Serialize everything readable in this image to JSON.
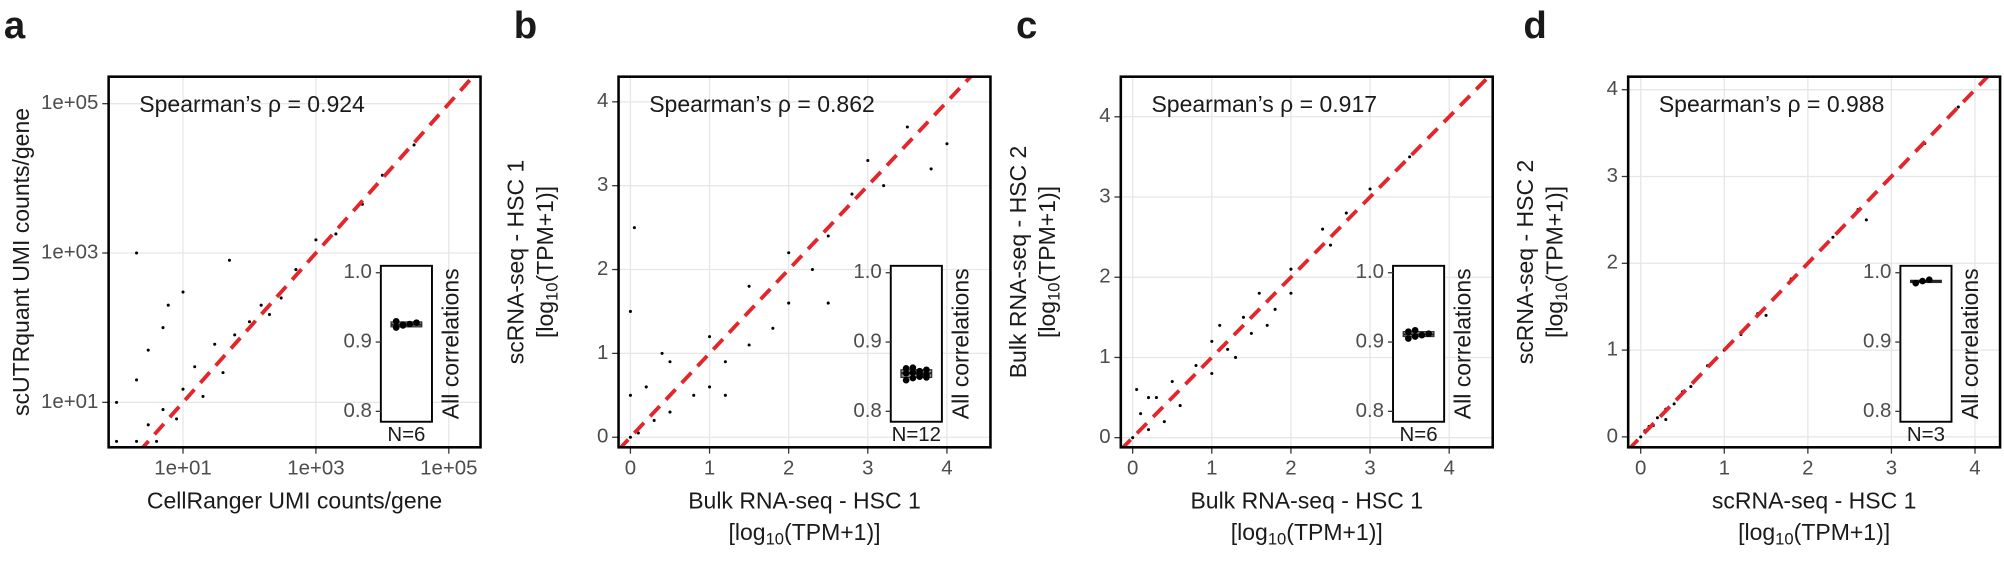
{
  "chart_data": [
    {
      "type": "scatter",
      "letter": "a",
      "annotation": "Spearman’s ρ = 0.924",
      "xlabel": [
        [
          "CellRanger UMI counts/gene"
        ]
      ],
      "ylabel": [
        [
          "scUTRquant UMI counts/gene"
        ]
      ],
      "log": true,
      "color": "#000000",
      "diagonal_color": "#e3262b",
      "grid": true,
      "xlim": [
        0.76,
        300000
      ],
      "ylim": [
        2.5,
        230000
      ],
      "xticks": [
        {
          "value": 10,
          "label": "1e+01"
        },
        {
          "value": 1000,
          "label": "1e+03"
        },
        {
          "value": 100000,
          "label": "1e+05"
        }
      ],
      "yticks": [
        {
          "value": 10,
          "label": "1e+01"
        },
        {
          "value": 1000,
          "label": "1e+03"
        },
        {
          "value": 100000,
          "label": "1e+05"
        }
      ],
      "x": [
        1,
        1,
        2,
        2,
        3,
        3,
        5,
        5,
        8,
        10,
        10,
        15,
        20,
        30,
        40,
        60,
        100,
        150,
        300,
        500,
        1000,
        2000,
        5000,
        10000,
        30000,
        2,
        4,
        6,
        50,
        200
      ],
      "y": [
        3,
        10,
        3,
        20,
        5,
        50,
        8,
        100,
        6,
        15,
        300,
        30,
        12,
        60,
        25,
        80,
        120,
        200,
        250,
        600,
        1500,
        1800,
        4500,
        11000,
        28000,
        1000,
        3,
        200,
        800,
        150
      ],
      "inset": {
        "ylabel": "All correlations",
        "n_label": "N=6",
        "ylim": [
          0.785,
          1.01
        ],
        "yticks": [
          0.8,
          0.9,
          {
            "value": 1,
            "label": "1.0"
          }
        ],
        "box": [
          0.922,
          0.925,
          0.929
        ],
        "values": [
          0.921,
          0.924,
          0.926,
          0.928,
          0.93,
          0.925
        ]
      }
    },
    {
      "type": "scatter",
      "letter": "b",
      "annotation": "Spearman’s ρ = 0.862",
      "xlabel": [
        [
          "Bulk RNA-seq - HSC 1"
        ],
        [
          "[log",
          "10",
          "(TPM+1)]"
        ]
      ],
      "ylabel": [
        [
          "scRNA-seq - HSC 1"
        ],
        [
          "[log",
          "10",
          "(TPM+1)]"
        ]
      ],
      "log": false,
      "color": "#000000",
      "diagonal_color": "#e3262b",
      "grid": true,
      "xlim": [
        -0.15,
        4.55
      ],
      "ylim": [
        -0.12,
        4.3
      ],
      "xticks": [
        0,
        1,
        2,
        3,
        4
      ],
      "yticks": [
        0,
        1,
        2,
        3,
        4
      ],
      "x": [
        0,
        0,
        0,
        0.1,
        0.2,
        0.3,
        0.5,
        0.5,
        0.8,
        1,
        1,
        1.2,
        1.5,
        1.5,
        1.8,
        2,
        2,
        2.3,
        2.5,
        2.8,
        3,
        3.2,
        3.5,
        0.05,
        0.1,
        0.4,
        1.2,
        2.5,
        3.8,
        4
      ],
      "y": [
        0,
        0.5,
        1.5,
        0.1,
        0.6,
        0.2,
        0.9,
        0.3,
        0.5,
        1.2,
        0.6,
        0.9,
        1.8,
        1.1,
        1.3,
        2.2,
        1.6,
        2,
        2.4,
        2.9,
        3.3,
        3,
        3.7,
        2.5,
        0.05,
        1,
        0.5,
        1.6,
        3.2,
        3.5
      ],
      "inset": {
        "ylabel": "All correlations",
        "n_label": "N=12",
        "ylim": [
          0.785,
          1.01
        ],
        "yticks": [
          0.8,
          0.9,
          {
            "value": 1,
            "label": "1.0"
          }
        ],
        "box": [
          0.849,
          0.855,
          0.86
        ],
        "values": [
          0.845,
          0.848,
          0.85,
          0.852,
          0.855,
          0.856,
          0.858,
          0.86,
          0.862,
          0.863,
          0.853,
          0.849
        ]
      }
    },
    {
      "type": "scatter",
      "letter": "c",
      "annotation": "Spearman’s ρ = 0.917",
      "xlabel": [
        [
          "Bulk RNA-seq - HSC 1"
        ],
        [
          "[log",
          "10",
          "(TPM+1)]"
        ]
      ],
      "ylabel": [
        [
          "Bulk RNA-seq - HSC 2"
        ],
        [
          "[log",
          "10",
          "(TPM+1)]"
        ]
      ],
      "log": false,
      "color": "#000000",
      "diagonal_color": "#e3262b",
      "grid": true,
      "xlim": [
        -0.15,
        4.55
      ],
      "ylim": [
        -0.12,
        4.5
      ],
      "xticks": [
        0,
        1,
        2,
        3,
        4
      ],
      "yticks": [
        0,
        1,
        2,
        3,
        4
      ],
      "x": [
        0,
        0.1,
        0.2,
        0.3,
        0.5,
        0.6,
        0.8,
        1,
        1,
        1.2,
        1.4,
        1.5,
        1.6,
        1.8,
        2,
        2,
        2.2,
        2.5,
        2.7,
        3,
        3.2,
        3.5,
        4,
        0.05,
        0.4,
        1.1,
        1.7,
        2.4,
        0.2,
        1.3
      ],
      "y": [
        0,
        0.3,
        0.1,
        0.5,
        0.7,
        0.4,
        0.9,
        1.2,
        0.8,
        1.1,
        1.5,
        1.3,
        1.8,
        1.6,
        2.1,
        1.8,
        2.2,
        2.4,
        2.8,
        3.1,
        3.2,
        3.5,
        4,
        0.6,
        0.2,
        1.4,
        1.4,
        2.6,
        0.5,
        1
      ],
      "inset": {
        "ylabel": "All correlations",
        "n_label": "N=6",
        "ylim": [
          0.785,
          1.01
        ],
        "yticks": [
          0.8,
          0.9,
          {
            "value": 1,
            "label": "1.0"
          }
        ],
        "box": [
          0.908,
          0.911,
          0.915
        ],
        "values": [
          0.905,
          0.908,
          0.91,
          0.912,
          0.915,
          0.917
        ]
      }
    },
    {
      "type": "scatter",
      "letter": "d",
      "annotation": "Spearman’s ρ = 0.988",
      "xlabel": [
        [
          "scRNA-seq - HSC 1"
        ],
        [
          "[log",
          "10",
          "(TPM+1)]"
        ]
      ],
      "ylabel": [
        [
          "scRNA-seq - HSC 2"
        ],
        [
          "[log",
          "10",
          "(TPM+1)]"
        ]
      ],
      "log": false,
      "color": "#000000",
      "diagonal_color": "#e3262b",
      "grid": true,
      "xlim": [
        -0.15,
        4.3
      ],
      "ylim": [
        -0.12,
        4.15
      ],
      "xticks": [
        0,
        1,
        2,
        3,
        4
      ],
      "yticks": [
        0,
        1,
        2,
        3,
        4
      ],
      "x": [
        0,
        0.05,
        0.1,
        0.15,
        0.2,
        0.3,
        0.4,
        0.5,
        0.6,
        0.8,
        1,
        1.2,
        1.4,
        1.6,
        1.8,
        2,
        2.3,
        2.6,
        3,
        3.4,
        3.8,
        4.1,
        0.3,
        1.5,
        2.7
      ],
      "y": [
        0,
        0.07,
        0.12,
        0.13,
        0.22,
        0.32,
        0.38,
        0.52,
        0.58,
        0.82,
        1,
        1.18,
        1.42,
        1.6,
        1.82,
        2,
        2.3,
        2.62,
        3,
        3.38,
        3.8,
        4.1,
        0.2,
        1.4,
        2.5
      ],
      "inset": {
        "ylabel": "All correlations",
        "n_label": "N=3",
        "ylim": [
          0.785,
          1.01
        ],
        "yticks": [
          0.8,
          0.9,
          {
            "value": 1,
            "label": "1.0"
          }
        ],
        "box": [
          0.986,
          0.988,
          0.989
        ],
        "values": [
          0.985,
          0.988,
          0.99
        ]
      }
    }
  ]
}
